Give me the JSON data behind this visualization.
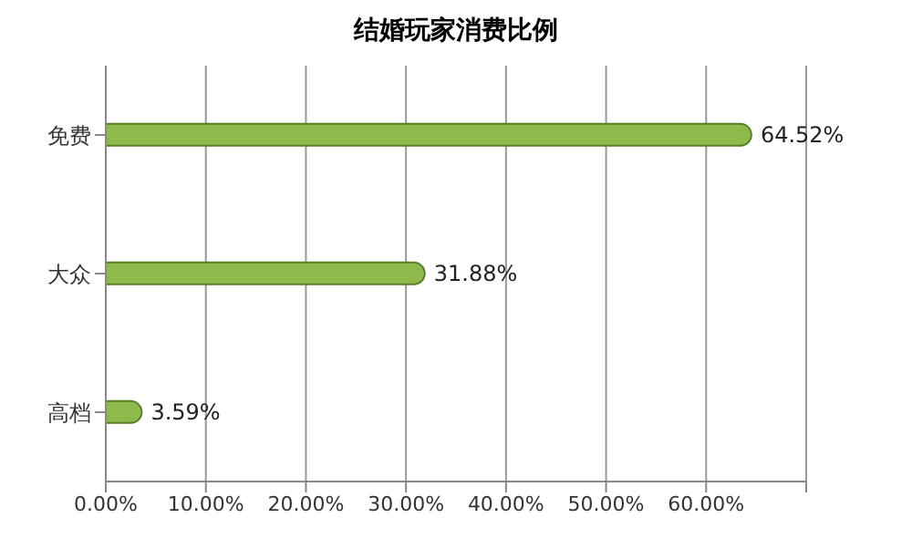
{
  "chart_data": {
    "type": "bar",
    "title": "结婚玩家消费比例",
    "orientation": "horizontal",
    "categories": [
      "免费",
      "大众",
      "高档"
    ],
    "values": [
      64.52,
      31.88,
      3.59
    ],
    "value_labels": [
      "64.52%",
      "31.88%",
      "3.59%"
    ],
    "color": "#8dba4a",
    "xlim": [
      0,
      70
    ],
    "xticks": [
      {
        "value": 0,
        "label": "0.00%"
      },
      {
        "value": 10,
        "label": "10.00%"
      },
      {
        "value": 20,
        "label": "20.00%"
      },
      {
        "value": 30,
        "label": "30.00%"
      },
      {
        "value": 40,
        "label": "40.00%"
      },
      {
        "value": 50,
        "label": "50.00%"
      },
      {
        "value": 60,
        "label": "60.00%"
      },
      {
        "value": 70,
        "label": null
      }
    ],
    "grid": "x"
  }
}
